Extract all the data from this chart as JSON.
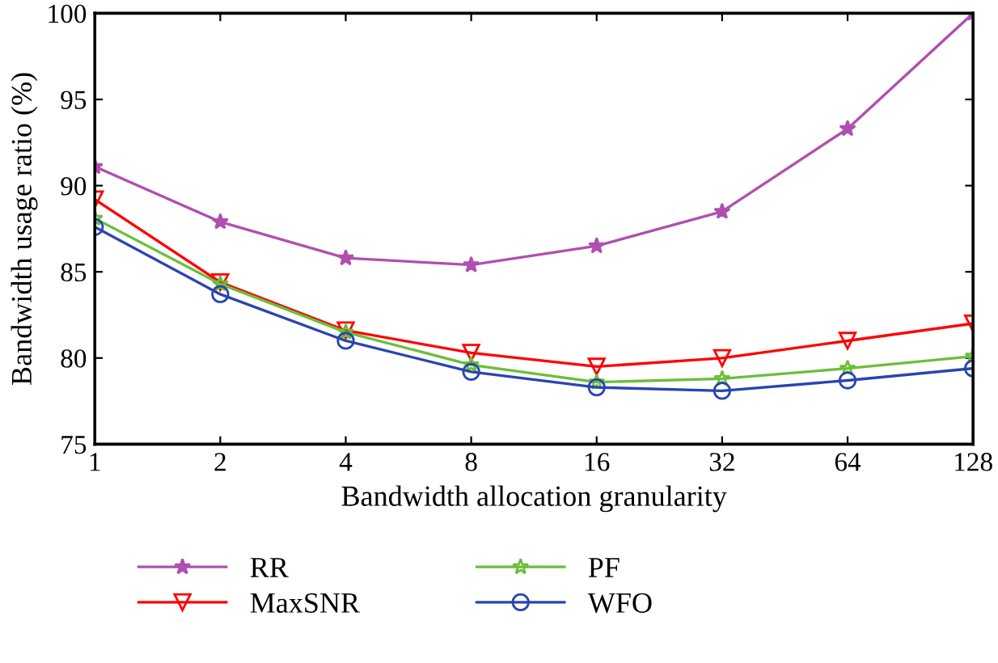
{
  "chart_data": {
    "type": "line",
    "xlabel": "Bandwidth allocation granularity",
    "ylabel": "Bandwidth usage ratio (%)",
    "categories": [
      "1",
      "2",
      "4",
      "8",
      "16",
      "32",
      "64",
      "128"
    ],
    "ylim": [
      75,
      100
    ],
    "yticks": [
      75,
      80,
      85,
      90,
      95,
      100
    ],
    "grid": false,
    "legend": "bottom",
    "line_style": "solid",
    "series": [
      {
        "name": "RR",
        "color": "#b04fb0",
        "marker": "star",
        "values": [
          91.1,
          87.9,
          85.8,
          85.4,
          86.5,
          88.5,
          93.3,
          100
        ]
      },
      {
        "name": "MaxSNR",
        "color": "#ff0000",
        "marker": "triangle",
        "values": [
          89.2,
          84.4,
          81.6,
          80.3,
          79.5,
          80.0,
          81.0,
          82.0
        ]
      },
      {
        "name": "PF",
        "color": "#6abf3a",
        "marker": "star",
        "values": [
          88.1,
          84.3,
          81.5,
          79.6,
          78.6,
          78.8,
          79.4,
          80.1
        ]
      },
      {
        "name": "WFO",
        "color": "#2a44b0",
        "marker": "circle",
        "values": [
          87.6,
          83.7,
          81.0,
          79.2,
          78.3,
          78.1,
          78.7,
          79.4
        ]
      }
    ]
  }
}
